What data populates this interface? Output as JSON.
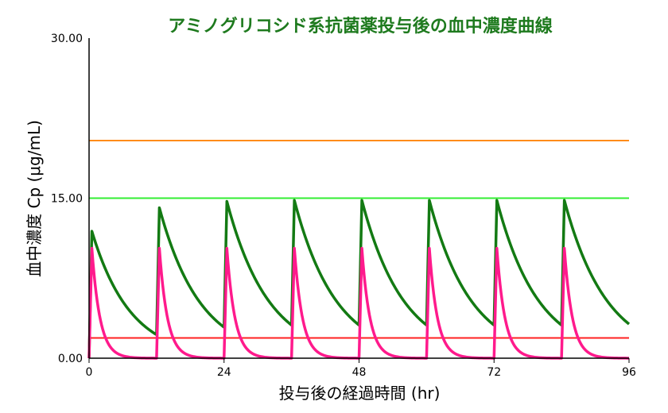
{
  "chart_data": {
    "type": "line",
    "title": "アミノグリコシド系抗菌薬投与後の血中濃度曲線",
    "xlabel": "投与後の経過時間 (hr)",
    "ylabel": "血中濃度 Cp (μg/mL)",
    "xlim": [
      0,
      96
    ],
    "ylim": [
      0,
      30
    ],
    "x_ticks": [
      0,
      24,
      48,
      72,
      96
    ],
    "y_ticks": [
      "0.00",
      "15.00",
      "30.00"
    ],
    "y_tick_values": [
      0,
      15,
      30
    ],
    "grid": false,
    "reference_lines": [
      {
        "y": 20.4,
        "color": "#ff8c1a"
      },
      {
        "y": 15.0,
        "color": "#33ee33"
      },
      {
        "y": 1.9,
        "color": "#ff2222"
      }
    ],
    "series": [
      {
        "color": "#137a13",
        "dose_interval": 12,
        "dose_times": [
          0,
          12,
          24,
          36,
          48,
          60,
          72,
          84
        ],
        "peak_times": [
          0.5,
          12.5,
          24.5,
          36.5,
          48.5,
          60.5,
          72.5,
          84.5
        ],
        "peaks": [
          11.9,
          14.1,
          14.7,
          14.8,
          14.8,
          14.8,
          14.8,
          14.8
        ],
        "troughs": [
          2.2,
          2.9,
          3.1,
          3.1,
          3.1,
          3.1,
          3.1,
          3.2
        ],
        "half_life": 5.6,
        "x_end": 96
      },
      {
        "color": "#ff1a8c",
        "dose_interval": 12,
        "dose_times": [
          0,
          12,
          24,
          36,
          48,
          60,
          72,
          84
        ],
        "peak_times": [
          0.5,
          12.5,
          24.5,
          36.5,
          48.5,
          60.5,
          72.5,
          84.5
        ],
        "peaks": [
          10.3,
          10.3,
          10.3,
          10.3,
          10.3,
          10.3,
          10.3,
          10.3
        ],
        "troughs": [
          0,
          0,
          0,
          0,
          0,
          0,
          0,
          0
        ],
        "half_life": 1.0,
        "x_end": 96
      }
    ]
  }
}
